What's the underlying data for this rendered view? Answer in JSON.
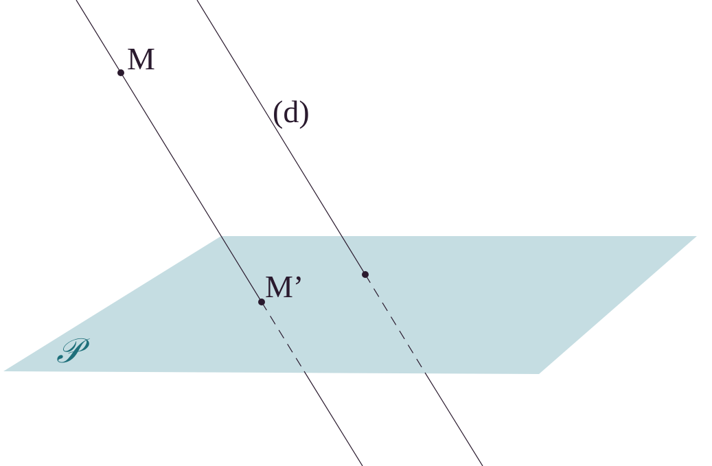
{
  "points": [
    {
      "label": "M"
    },
    {
      "label": "M’"
    }
  ],
  "line": {
    "label": "(d)"
  },
  "plane": {
    "label": "𝒫"
  }
}
